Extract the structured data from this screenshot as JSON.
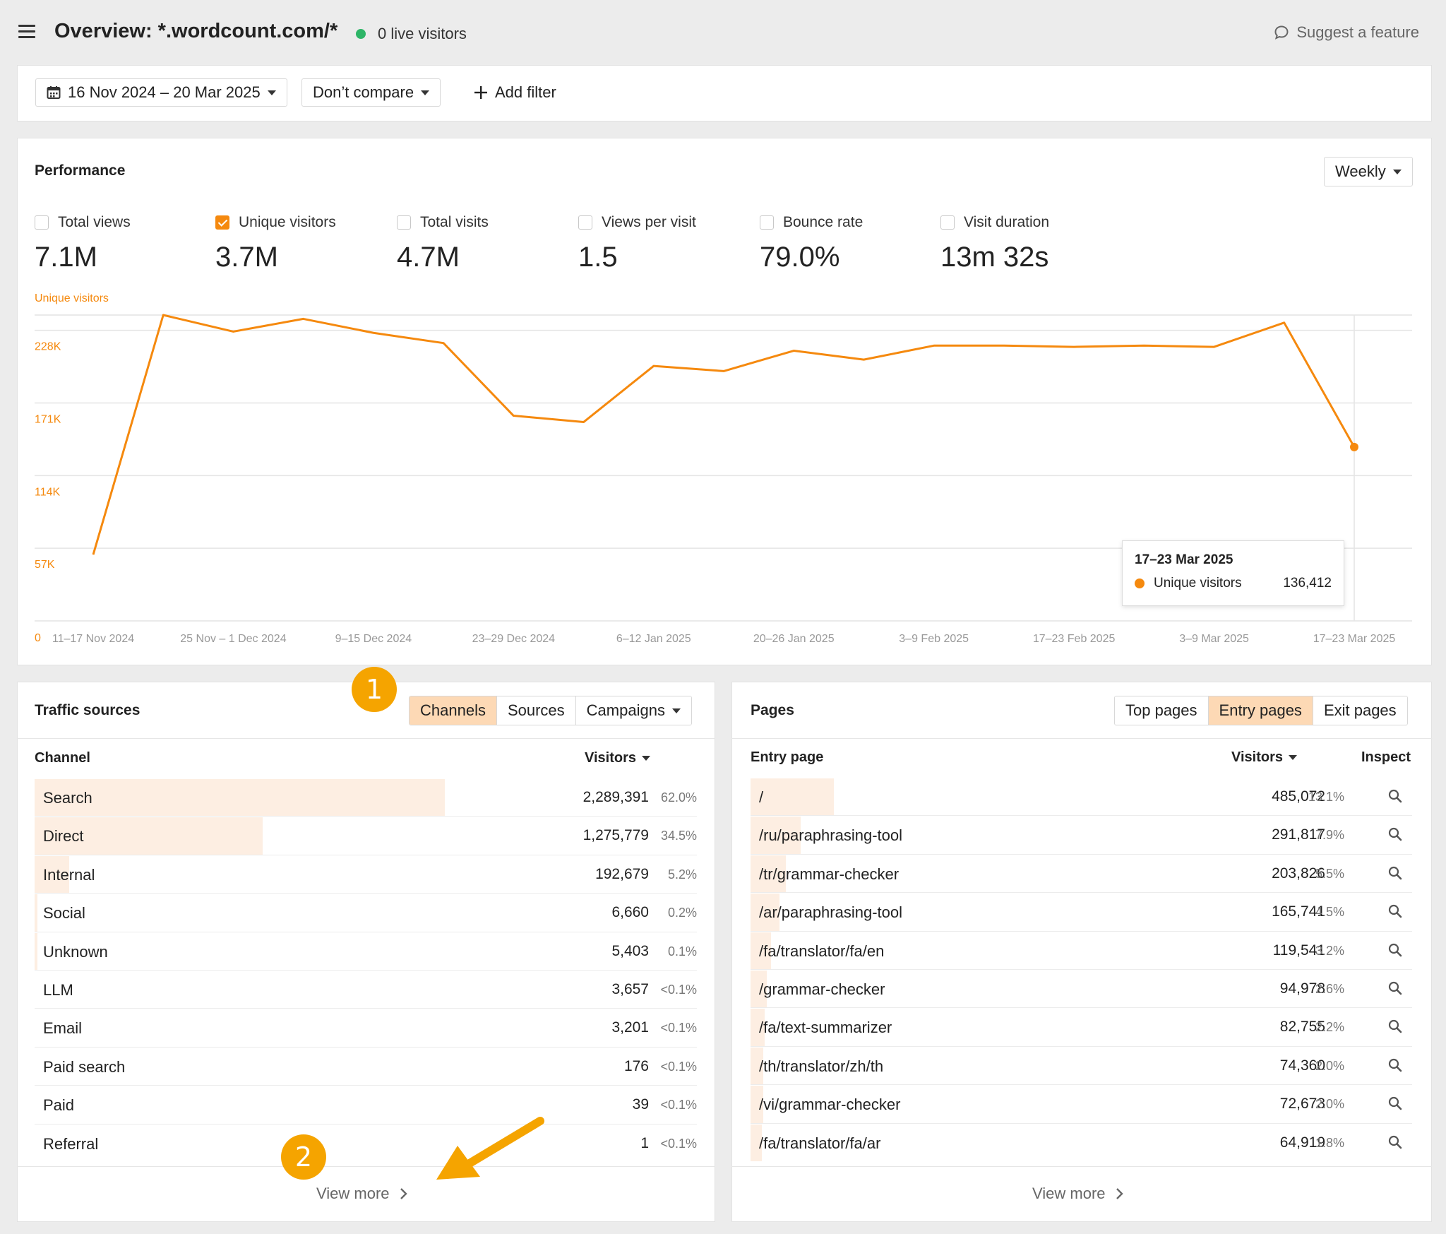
{
  "header": {
    "title": "Overview: *.wordcount.com/*",
    "live": "0 live visitors",
    "suggest": "Suggest a feature"
  },
  "filters": {
    "date_range": "16 Nov 2024 – 20 Mar 2025",
    "compare": "Don’t compare",
    "add_filter": "Add filter"
  },
  "performance": {
    "title": "Performance",
    "interval": "Weekly",
    "metrics": [
      {
        "label": "Total views",
        "value": "7.1M",
        "checked": false
      },
      {
        "label": "Unique visitors",
        "value": "3.7M",
        "checked": true
      },
      {
        "label": "Total visits",
        "value": "4.7M",
        "checked": false
      },
      {
        "label": "Views per visit",
        "value": "1.5",
        "checked": false
      },
      {
        "label": "Bounce rate",
        "value": "79.0%",
        "checked": false
      },
      {
        "label": "Visit duration",
        "value": "13m 32s",
        "checked": false
      }
    ],
    "tooltip": {
      "date": "17–23 Mar 2025",
      "series": "Unique visitors",
      "value": "136,412"
    }
  },
  "chart_data": {
    "type": "line",
    "ylabel": "Unique visitors",
    "series_color": "#f5890e",
    "y_ticks": [
      "0",
      "57K",
      "114K",
      "171K",
      "228K"
    ],
    "y_tick_values": [
      0,
      57000,
      114000,
      171000,
      228000
    ],
    "ylim": [
      0,
      240000
    ],
    "x_tick_labels": [
      "11–17 Nov 2024",
      "25 Nov – 1 Dec 2024",
      "9–15 Dec 2024",
      "23–29 Dec 2024",
      "6–12 Jan 2025",
      "20–26 Jan 2025",
      "3–9 Feb 2025",
      "17–23 Feb 2025",
      "3–9 Mar 2025",
      "17–23 Mar 2025"
    ],
    "x": [
      "11–17 Nov 2024",
      "18–24 Nov 2024",
      "25 Nov – 1 Dec 2024",
      "2–8 Dec 2024",
      "9–15 Dec 2024",
      "16–22 Dec 2024",
      "23–29 Dec 2024",
      "30 Dec 2024 – 5 Jan 2025",
      "6–12 Jan 2025",
      "13–19 Jan 2025",
      "20–26 Jan 2025",
      "27 Jan – 2 Feb 2025",
      "3–9 Feb 2025",
      "10–16 Feb 2025",
      "17–23 Feb 2025",
      "24 Feb – 2 Mar 2025",
      "3–9 Mar 2025",
      "10–16 Mar 2025",
      "17–23 Mar 2025"
    ],
    "values": [
      52000,
      240000,
      227000,
      237000,
      226000,
      218000,
      161000,
      156000,
      200000,
      196000,
      212000,
      205000,
      216000,
      216000,
      215000,
      216000,
      215000,
      234000,
      136412
    ],
    "grid": true,
    "legend": "none"
  },
  "traffic": {
    "title": "Traffic sources",
    "tabs": [
      "Channels",
      "Sources",
      "Campaigns"
    ],
    "col_channel": "Channel",
    "col_visitors": "Visitors",
    "rows": [
      {
        "label": "Search",
        "visitors": "2,289,391",
        "pct": "62.0%",
        "share": 0.62
      },
      {
        "label": "Direct",
        "visitors": "1,275,779",
        "pct": "34.5%",
        "share": 0.345
      },
      {
        "label": "Internal",
        "visitors": "192,679",
        "pct": "5.2%",
        "share": 0.052
      },
      {
        "label": "Social",
        "visitors": "6,660",
        "pct": "0.2%",
        "share": 0.002
      },
      {
        "label": "Unknown",
        "visitors": "5,403",
        "pct": "0.1%",
        "share": 0.001
      },
      {
        "label": "LLM",
        "visitors": "3,657",
        "pct": "<0.1%",
        "share": 0
      },
      {
        "label": "Email",
        "visitors": "3,201",
        "pct": "<0.1%",
        "share": 0
      },
      {
        "label": "Paid search",
        "visitors": "176",
        "pct": "<0.1%",
        "share": 0
      },
      {
        "label": "Paid",
        "visitors": "39",
        "pct": "<0.1%",
        "share": 0
      },
      {
        "label": "Referral",
        "visitors": "1",
        "pct": "<0.1%",
        "share": 0
      }
    ],
    "view_more": "View more"
  },
  "pages": {
    "title": "Pages",
    "tabs": [
      "Top pages",
      "Entry pages",
      "Exit pages"
    ],
    "col_page": "Entry page",
    "col_visitors": "Visitors",
    "col_inspect": "Inspect",
    "rows": [
      {
        "label": "/",
        "visitors": "485,072",
        "pct": "13.1%",
        "share": 0.131
      },
      {
        "label": "/ru/paraphrasing-tool",
        "visitors": "291,817",
        "pct": "7.9%",
        "share": 0.079
      },
      {
        "label": "/tr/grammar-checker",
        "visitors": "203,826",
        "pct": "5.5%",
        "share": 0.055
      },
      {
        "label": "/ar/paraphrasing-tool",
        "visitors": "165,741",
        "pct": "4.5%",
        "share": 0.045
      },
      {
        "label": "/fa/translator/fa/en",
        "visitors": "119,541",
        "pct": "3.2%",
        "share": 0.032
      },
      {
        "label": "/grammar-checker",
        "visitors": "94,978",
        "pct": "2.6%",
        "share": 0.026
      },
      {
        "label": "/fa/text-summarizer",
        "visitors": "82,755",
        "pct": "2.2%",
        "share": 0.022
      },
      {
        "label": "/th/translator/zh/th",
        "visitors": "74,360",
        "pct": "2.0%",
        "share": 0.02
      },
      {
        "label": "/vi/grammar-checker",
        "visitors": "72,673",
        "pct": "2.0%",
        "share": 0.02
      },
      {
        "label": "/fa/translator/fa/ar",
        "visitors": "64,919",
        "pct": "1.8%",
        "share": 0.018
      }
    ],
    "view_more": "View more"
  },
  "annotations": {
    "badge1": "1",
    "badge2": "2",
    "arrow_color": "#f5a400"
  }
}
